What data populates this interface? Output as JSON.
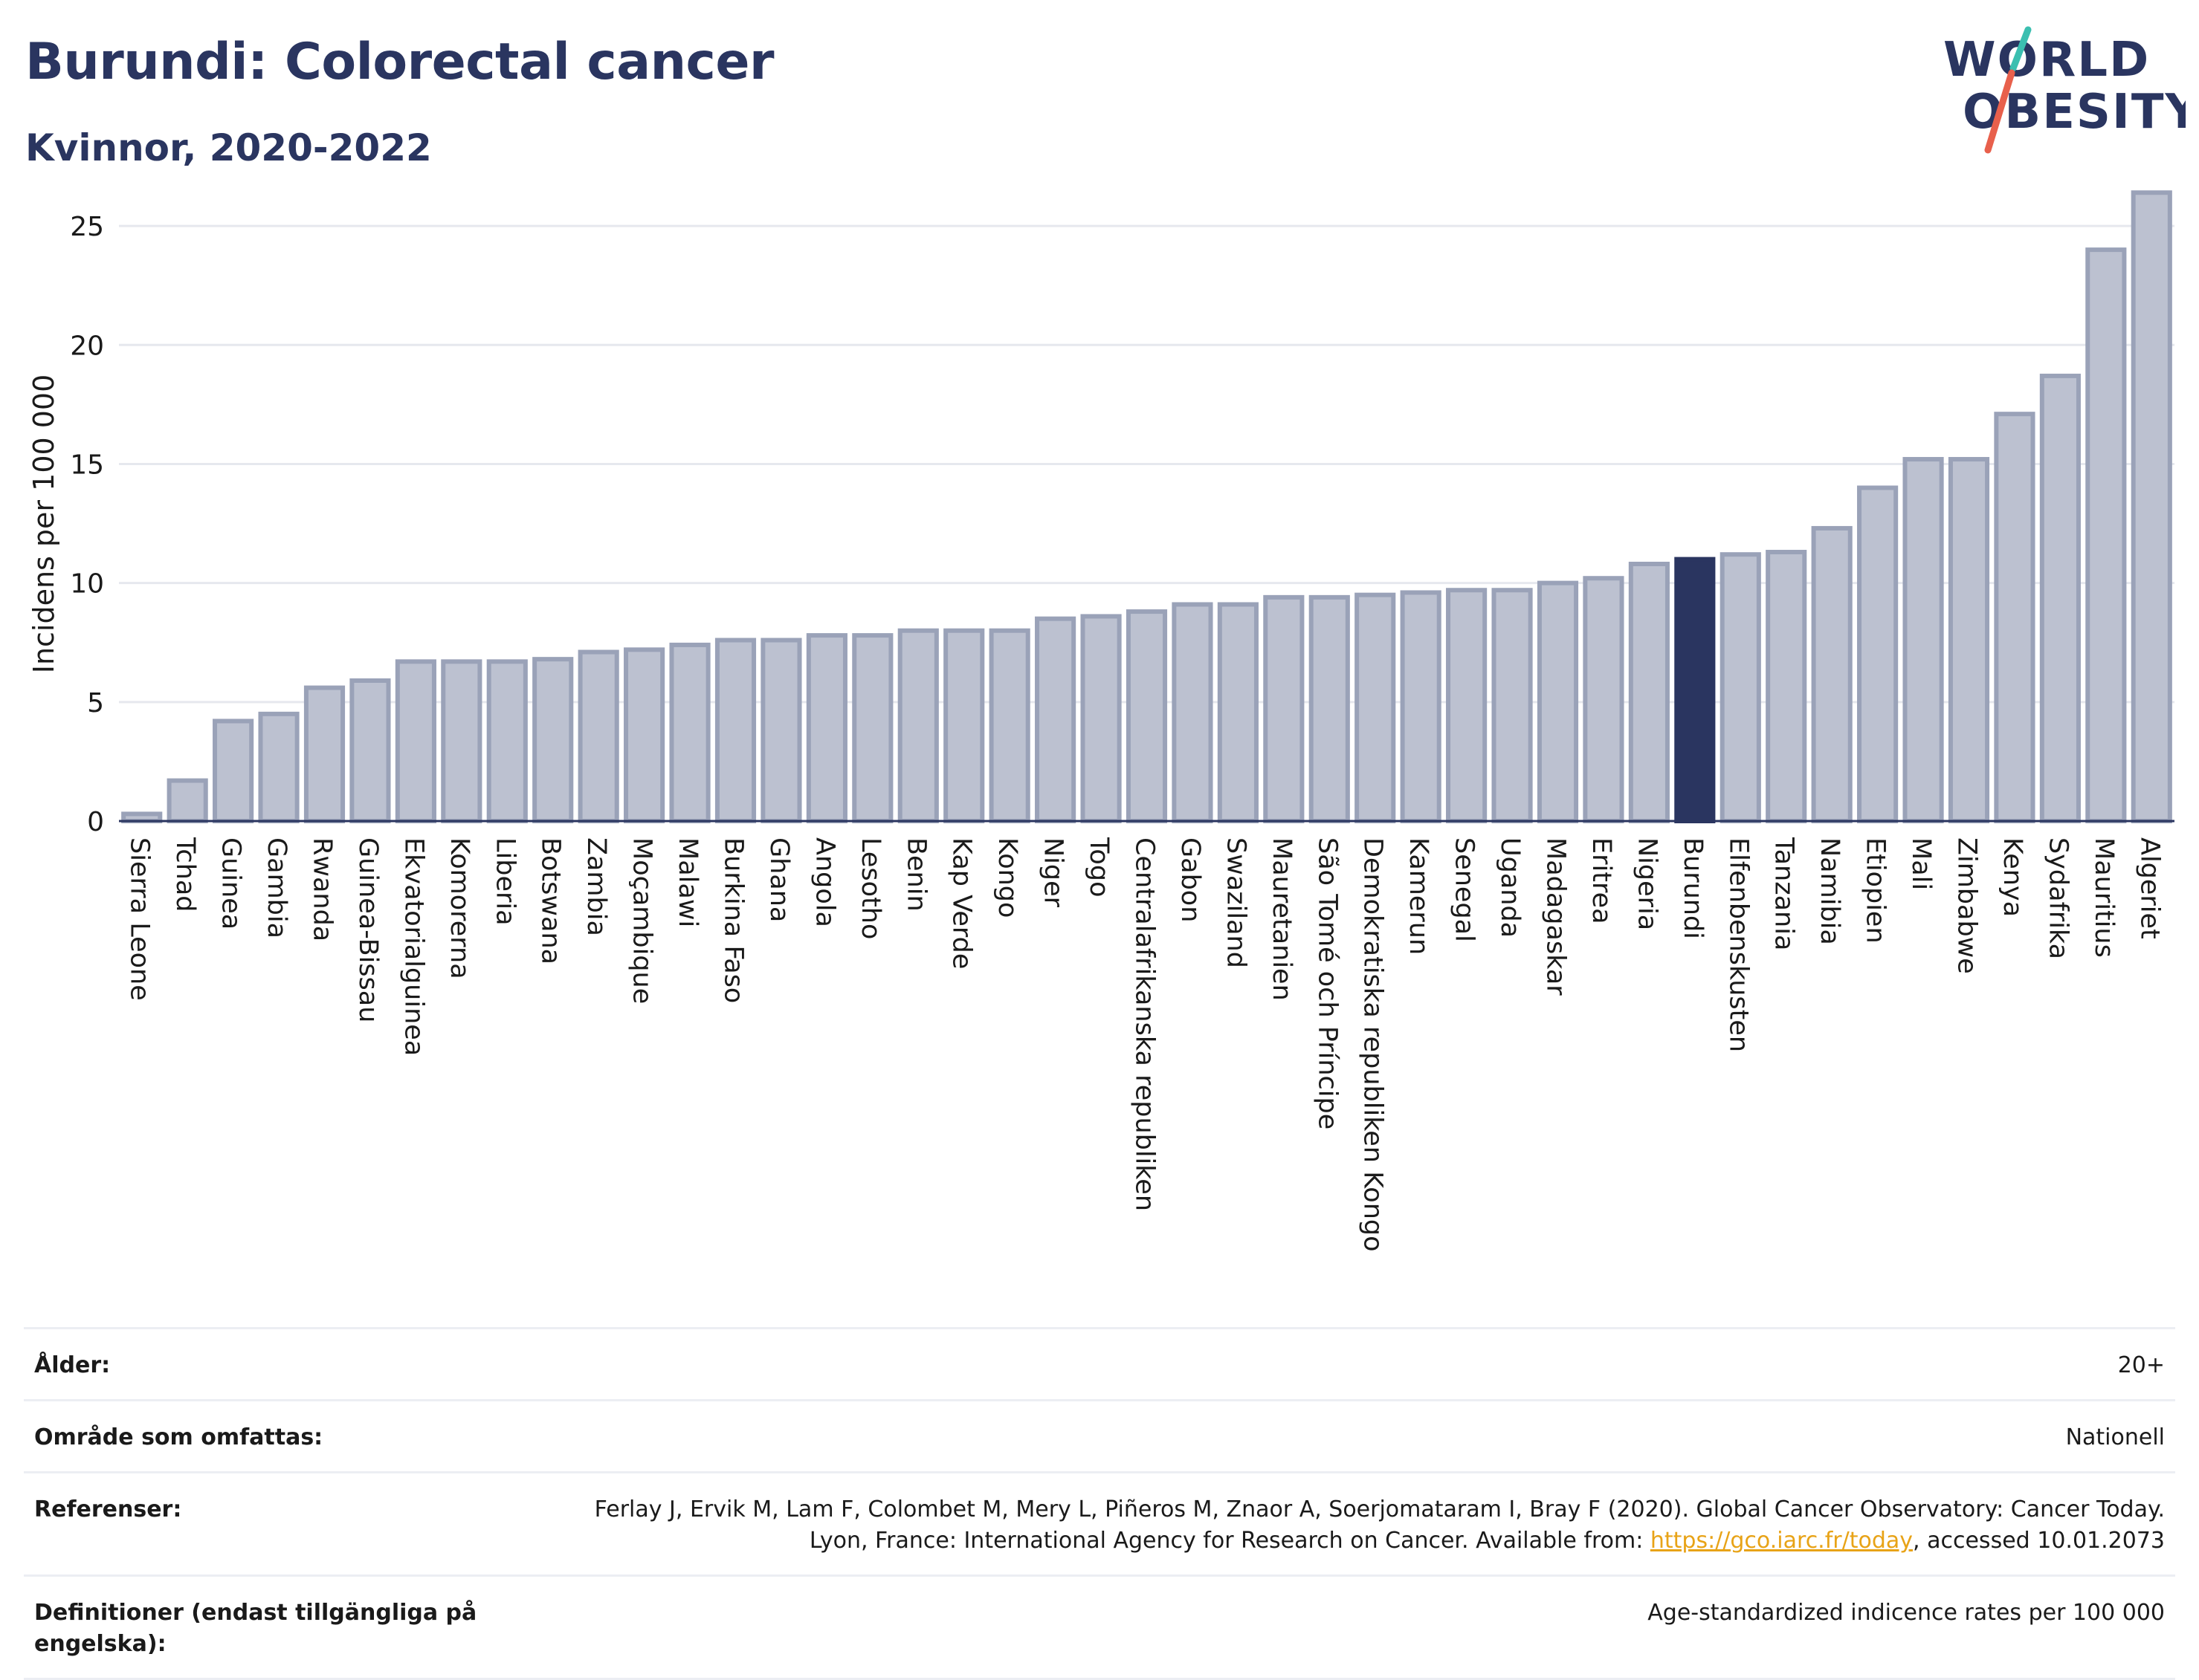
{
  "header": {
    "title": "Burundi: Colorectal cancer",
    "subtitle": "Kvinnor, 2020-2022"
  },
  "logo": {
    "line1": "WORLD",
    "line2": "OBESITY"
  },
  "chart_data": {
    "type": "bar",
    "ylabel": "Incidens per 100 000",
    "ylim": [
      0,
      27
    ],
    "yticks": [
      0,
      5,
      10,
      15,
      20,
      25
    ],
    "grid": true,
    "highlight": "Burundi",
    "colors": {
      "bar": "#bcc1d0",
      "bar_border": "#9aa2b8",
      "highlight": "#2a3560",
      "grid": "#e6e8ee",
      "axis": "#2a3560"
    },
    "categories": [
      "Sierra Leone",
      "Tchad",
      "Guinea",
      "Gambia",
      "Rwanda",
      "Guinea-Bissau",
      "Ekvatorialguinea",
      "Komorerna",
      "Liberia",
      "Botswana",
      "Zambia",
      "Moçambique",
      "Malawi",
      "Burkina Faso",
      "Ghana",
      "Angola",
      "Lesotho",
      "Benin",
      "Kap Verde",
      "Kongo",
      "Niger",
      "Togo",
      "Centralafrikanska republiken",
      "Gabon",
      "Swaziland",
      "Mauretanien",
      "São Tomé och Príncipe",
      "Demokratiska republiken Kongo",
      "Kamerun",
      "Senegal",
      "Uganda",
      "Madagaskar",
      "Eritrea",
      "Nigeria",
      "Burundi",
      "Elfenbenskusten",
      "Tanzania",
      "Namibia",
      "Etiopien",
      "Mali",
      "Zimbabwe",
      "Kenya",
      "Sydafrika",
      "Mauritius",
      "Algeriet"
    ],
    "values": [
      0.3,
      1.7,
      4.2,
      4.5,
      5.6,
      5.9,
      6.7,
      6.7,
      6.7,
      6.8,
      7.1,
      7.2,
      7.4,
      7.6,
      7.6,
      7.8,
      7.8,
      8.0,
      8.0,
      8.0,
      8.5,
      8.6,
      8.8,
      9.1,
      9.1,
      9.4,
      9.4,
      9.5,
      9.6,
      9.7,
      9.7,
      10.0,
      10.2,
      10.8,
      11.0,
      11.2,
      11.3,
      12.3,
      14.0,
      15.2,
      15.2,
      17.1,
      18.7,
      24.0,
      26.4
    ]
  },
  "meta": {
    "age_label": "Ålder:",
    "age_value": "20+",
    "area_label": "Område som omfattas:",
    "area_value": "Nationell",
    "ref_label": "Referenser:",
    "ref_text_before": "Ferlay J, Ervik M, Lam F, Colombet M, Mery L, Piñeros M, Znaor A, Soerjomataram I, Bray F (2020). Global Cancer Observatory: Cancer Today. Lyon, France: International Agency for Research on Cancer. Available from: ",
    "ref_link": "https://gco.iarc.fr/today",
    "ref_text_after": ", accessed 10.01.2073",
    "def_label": "Definitioner (endast tillgängliga på engelska):",
    "def_value": "Age-standardized indicence rates per 100 000"
  }
}
